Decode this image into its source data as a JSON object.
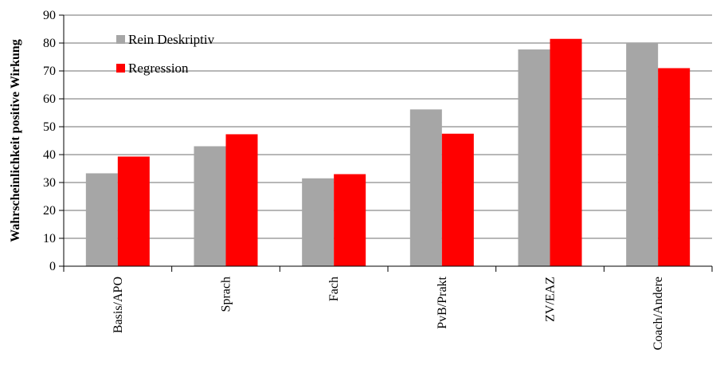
{
  "chart_data": {
    "type": "bar",
    "categories": [
      "Basis/APO",
      "Sprach",
      "Fach",
      "PvB/Prakt",
      "ZV/EAZ",
      "Coach/Andere"
    ],
    "series": [
      {
        "name": "Rein Deskriptiv",
        "values": [
          33.3,
          43.0,
          31.5,
          56.2,
          77.7,
          80.0
        ],
        "color": "#a6a6a6"
      },
      {
        "name": "Regression",
        "values": [
          39.3,
          47.3,
          33.0,
          47.5,
          81.5,
          71.0
        ],
        "color": "#ff0000"
      }
    ],
    "ylabel": "Wahrscheinlichkeit positive Wirkung",
    "xlabel": "",
    "ylim": [
      0,
      90
    ],
    "yticks": [
      0,
      10,
      20,
      30,
      40,
      50,
      60,
      70,
      80,
      90
    ],
    "grid": true,
    "legend_position": "top-left"
  }
}
